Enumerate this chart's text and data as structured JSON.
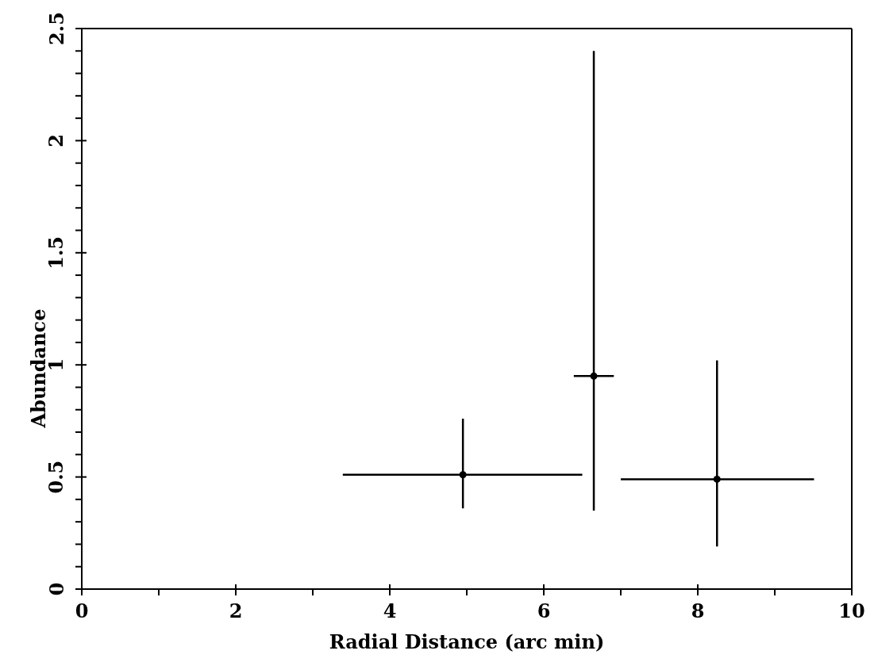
{
  "chart_data": {
    "type": "scatter",
    "xlabel": "Radial Distance (arc min)",
    "ylabel": "Abundance",
    "x": [
      4.95,
      6.65,
      8.25
    ],
    "values": [
      0.51,
      0.95,
      0.49
    ],
    "errors": [
      [
        0.36,
        0.76
      ],
      [
        0.35,
        2.4
      ],
      [
        0.19,
        1.02
      ]
    ],
    "xerrors": [
      [
        3.39,
        6.5
      ],
      [
        6.39,
        6.91
      ],
      [
        7.0,
        9.51
      ]
    ],
    "color": "#000000",
    "xlim": [
      0,
      10
    ],
    "xticks": [
      0,
      {
        "value": 1,
        "label": null
      },
      2,
      {
        "value": 3,
        "label": null
      },
      4,
      {
        "value": 5,
        "label": null
      },
      6,
      {
        "value": 7,
        "label": null
      },
      8,
      {
        "value": 9,
        "label": null
      },
      10
    ],
    "ylim": [
      0,
      2.5
    ],
    "yticks": [
      0,
      {
        "value": 0.1,
        "label": null
      },
      {
        "value": 0.2,
        "label": null
      },
      {
        "value": 0.3,
        "label": null
      },
      {
        "value": 0.4,
        "label": null
      },
      0.5,
      {
        "value": 0.6,
        "label": null
      },
      {
        "value": 0.7,
        "label": null
      },
      {
        "value": 0.8,
        "label": null
      },
      {
        "value": 0.9,
        "label": null
      },
      1,
      {
        "value": 1.1,
        "label": null
      },
      {
        "value": 1.2,
        "label": null
      },
      {
        "value": 1.3,
        "label": null
      },
      {
        "value": 1.4,
        "label": null
      },
      1.5,
      {
        "value": 1.6,
        "label": null
      },
      {
        "value": 1.7,
        "label": null
      },
      {
        "value": 1.8,
        "label": null
      },
      {
        "value": 1.9,
        "label": null
      },
      2,
      {
        "value": 2.1,
        "label": null
      },
      {
        "value": 2.2,
        "label": null
      },
      {
        "value": 2.3,
        "label": null
      },
      {
        "value": 2.4,
        "label": null
      },
      2.5
    ],
    "grid": false,
    "legend": false
  }
}
